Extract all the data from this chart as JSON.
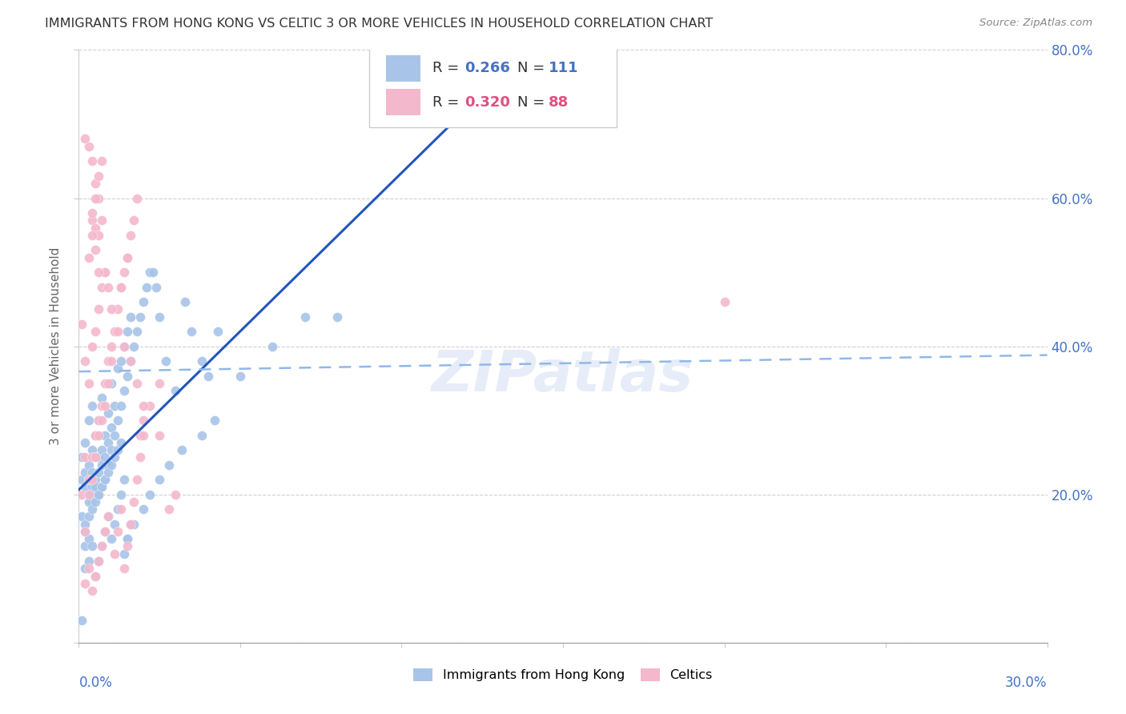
{
  "title": "IMMIGRANTS FROM HONG KONG VS CELTIC 3 OR MORE VEHICLES IN HOUSEHOLD CORRELATION CHART",
  "source": "Source: ZipAtlas.com",
  "ylabel": "3 or more Vehicles in Household",
  "series": [
    {
      "name": "Immigrants from Hong Kong",
      "color": "#a8c4e8",
      "R": 0.266,
      "N": 111,
      "r_color": "#4472c4",
      "n_color": "#4472c4"
    },
    {
      "name": "Celtics",
      "color": "#f4b8cc",
      "R": 0.32,
      "N": 88,
      "r_color": "#e05080",
      "n_color": "#e05080"
    }
  ],
  "xlim": [
    0.0,
    0.3
  ],
  "ylim": [
    0.0,
    0.8
  ],
  "blue_x": [
    0.001,
    0.001,
    0.001,
    0.002,
    0.002,
    0.002,
    0.002,
    0.003,
    0.003,
    0.003,
    0.003,
    0.004,
    0.004,
    0.004,
    0.004,
    0.004,
    0.005,
    0.005,
    0.005,
    0.005,
    0.006,
    0.006,
    0.006,
    0.006,
    0.007,
    0.007,
    0.007,
    0.007,
    0.008,
    0.008,
    0.008,
    0.009,
    0.009,
    0.009,
    0.01,
    0.01,
    0.01,
    0.011,
    0.011,
    0.012,
    0.012,
    0.013,
    0.013,
    0.014,
    0.014,
    0.015,
    0.015,
    0.016,
    0.016,
    0.017,
    0.018,
    0.019,
    0.02,
    0.021,
    0.022,
    0.023,
    0.024,
    0.025,
    0.027,
    0.03,
    0.033,
    0.035,
    0.038,
    0.04,
    0.043,
    0.05,
    0.06,
    0.07,
    0.08,
    0.002,
    0.003,
    0.003,
    0.004,
    0.005,
    0.005,
    0.006,
    0.007,
    0.008,
    0.009,
    0.01,
    0.011,
    0.012,
    0.013,
    0.014,
    0.015,
    0.016,
    0.002,
    0.002,
    0.003,
    0.003,
    0.004,
    0.005,
    0.006,
    0.007,
    0.008,
    0.009,
    0.01,
    0.011,
    0.012,
    0.013,
    0.014,
    0.015,
    0.017,
    0.02,
    0.022,
    0.025,
    0.028,
    0.032,
    0.038,
    0.042,
    0.001
  ],
  "blue_y": [
    0.22,
    0.25,
    0.17,
    0.21,
    0.23,
    0.27,
    0.15,
    0.2,
    0.22,
    0.24,
    0.3,
    0.19,
    0.21,
    0.23,
    0.26,
    0.32,
    0.2,
    0.22,
    0.25,
    0.28,
    0.2,
    0.23,
    0.25,
    0.3,
    0.21,
    0.24,
    0.26,
    0.33,
    0.22,
    0.25,
    0.28,
    0.24,
    0.27,
    0.31,
    0.26,
    0.29,
    0.35,
    0.28,
    0.32,
    0.3,
    0.37,
    0.32,
    0.38,
    0.34,
    0.4,
    0.36,
    0.42,
    0.38,
    0.44,
    0.4,
    0.42,
    0.44,
    0.46,
    0.48,
    0.5,
    0.5,
    0.48,
    0.44,
    0.38,
    0.34,
    0.46,
    0.42,
    0.38,
    0.36,
    0.42,
    0.36,
    0.4,
    0.44,
    0.44,
    0.16,
    0.17,
    0.19,
    0.18,
    0.19,
    0.21,
    0.2,
    0.21,
    0.22,
    0.23,
    0.24,
    0.25,
    0.26,
    0.27,
    0.12,
    0.14,
    0.16,
    0.13,
    0.1,
    0.14,
    0.11,
    0.13,
    0.09,
    0.11,
    0.13,
    0.15,
    0.17,
    0.14,
    0.16,
    0.18,
    0.2,
    0.22,
    0.14,
    0.16,
    0.18,
    0.2,
    0.22,
    0.24,
    0.26,
    0.28,
    0.3,
    0.03
  ],
  "pink_x": [
    0.001,
    0.001,
    0.002,
    0.002,
    0.003,
    0.003,
    0.003,
    0.004,
    0.004,
    0.004,
    0.005,
    0.005,
    0.005,
    0.006,
    0.006,
    0.007,
    0.007,
    0.008,
    0.008,
    0.009,
    0.01,
    0.011,
    0.012,
    0.013,
    0.014,
    0.015,
    0.016,
    0.017,
    0.018,
    0.019,
    0.02,
    0.022,
    0.025,
    0.028,
    0.03,
    0.2,
    0.002,
    0.003,
    0.004,
    0.005,
    0.006,
    0.007,
    0.008,
    0.009,
    0.01,
    0.011,
    0.012,
    0.013,
    0.014,
    0.015,
    0.016,
    0.017,
    0.018,
    0.019,
    0.02,
    0.013,
    0.015,
    0.003,
    0.004,
    0.005,
    0.006,
    0.002,
    0.006,
    0.007,
    0.008,
    0.009,
    0.01,
    0.012,
    0.014,
    0.016,
    0.018,
    0.02,
    0.025,
    0.002,
    0.003,
    0.004,
    0.005,
    0.006,
    0.007,
    0.008,
    0.009,
    0.004,
    0.005,
    0.006,
    0.007,
    0.004,
    0.005,
    0.006
  ],
  "pink_y": [
    0.2,
    0.43,
    0.25,
    0.38,
    0.22,
    0.35,
    0.52,
    0.25,
    0.4,
    0.57,
    0.28,
    0.42,
    0.56,
    0.3,
    0.45,
    0.32,
    0.48,
    0.35,
    0.5,
    0.38,
    0.4,
    0.42,
    0.45,
    0.48,
    0.5,
    0.52,
    0.55,
    0.57,
    0.6,
    0.28,
    0.3,
    0.32,
    0.35,
    0.18,
    0.2,
    0.46,
    0.15,
    0.2,
    0.22,
    0.25,
    0.28,
    0.3,
    0.32,
    0.35,
    0.38,
    0.12,
    0.15,
    0.18,
    0.1,
    0.13,
    0.16,
    0.19,
    0.22,
    0.25,
    0.28,
    0.48,
    0.52,
    0.67,
    0.65,
    0.62,
    0.6,
    0.68,
    0.55,
    0.57,
    0.5,
    0.48,
    0.45,
    0.42,
    0.4,
    0.38,
    0.35,
    0.32,
    0.28,
    0.08,
    0.1,
    0.07,
    0.09,
    0.11,
    0.13,
    0.15,
    0.17,
    0.58,
    0.6,
    0.63,
    0.65,
    0.55,
    0.53,
    0.5
  ]
}
